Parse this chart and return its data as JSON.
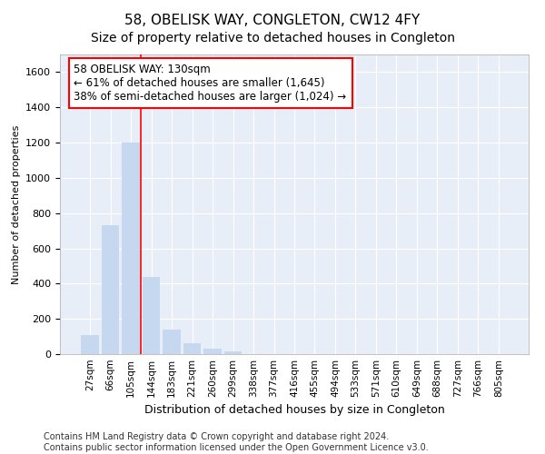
{
  "title": "58, OBELISK WAY, CONGLETON, CW12 4FY",
  "subtitle": "Size of property relative to detached houses in Congleton",
  "xlabel": "Distribution of detached houses by size in Congleton",
  "ylabel": "Number of detached properties",
  "bar_color": "#c5d8f0",
  "bar_edge_color": "none",
  "background_color": "#e8eef8",
  "grid_color": "#ffffff",
  "categories": [
    "27sqm",
    "66sqm",
    "105sqm",
    "144sqm",
    "183sqm",
    "221sqm",
    "260sqm",
    "299sqm",
    "338sqm",
    "377sqm",
    "416sqm",
    "455sqm",
    "494sqm",
    "533sqm",
    "571sqm",
    "610sqm",
    "649sqm",
    "688sqm",
    "727sqm",
    "766sqm",
    "805sqm"
  ],
  "values": [
    107,
    730,
    1200,
    440,
    140,
    60,
    32,
    16,
    0,
    0,
    0,
    0,
    0,
    0,
    0,
    0,
    0,
    0,
    0,
    0,
    0
  ],
  "ylim": [
    0,
    1700
  ],
  "yticks": [
    0,
    200,
    400,
    600,
    800,
    1000,
    1200,
    1400,
    1600
  ],
  "annotation_line1": "58 OBELISK WAY: 130sqm",
  "annotation_line2": "← 61% of detached houses are smaller (1,645)",
  "annotation_line3": "38% of semi-detached houses are larger (1,024) →",
  "footer_line1": "Contains HM Land Registry data © Crown copyright and database right 2024.",
  "footer_line2": "Contains public sector information licensed under the Open Government Licence v3.0.",
  "red_line_x": 2.5,
  "title_fontsize": 11,
  "subtitle_fontsize": 10,
  "xlabel_fontsize": 9,
  "ylabel_fontsize": 8,
  "annotation_fontsize": 8.5,
  "footer_fontsize": 7
}
